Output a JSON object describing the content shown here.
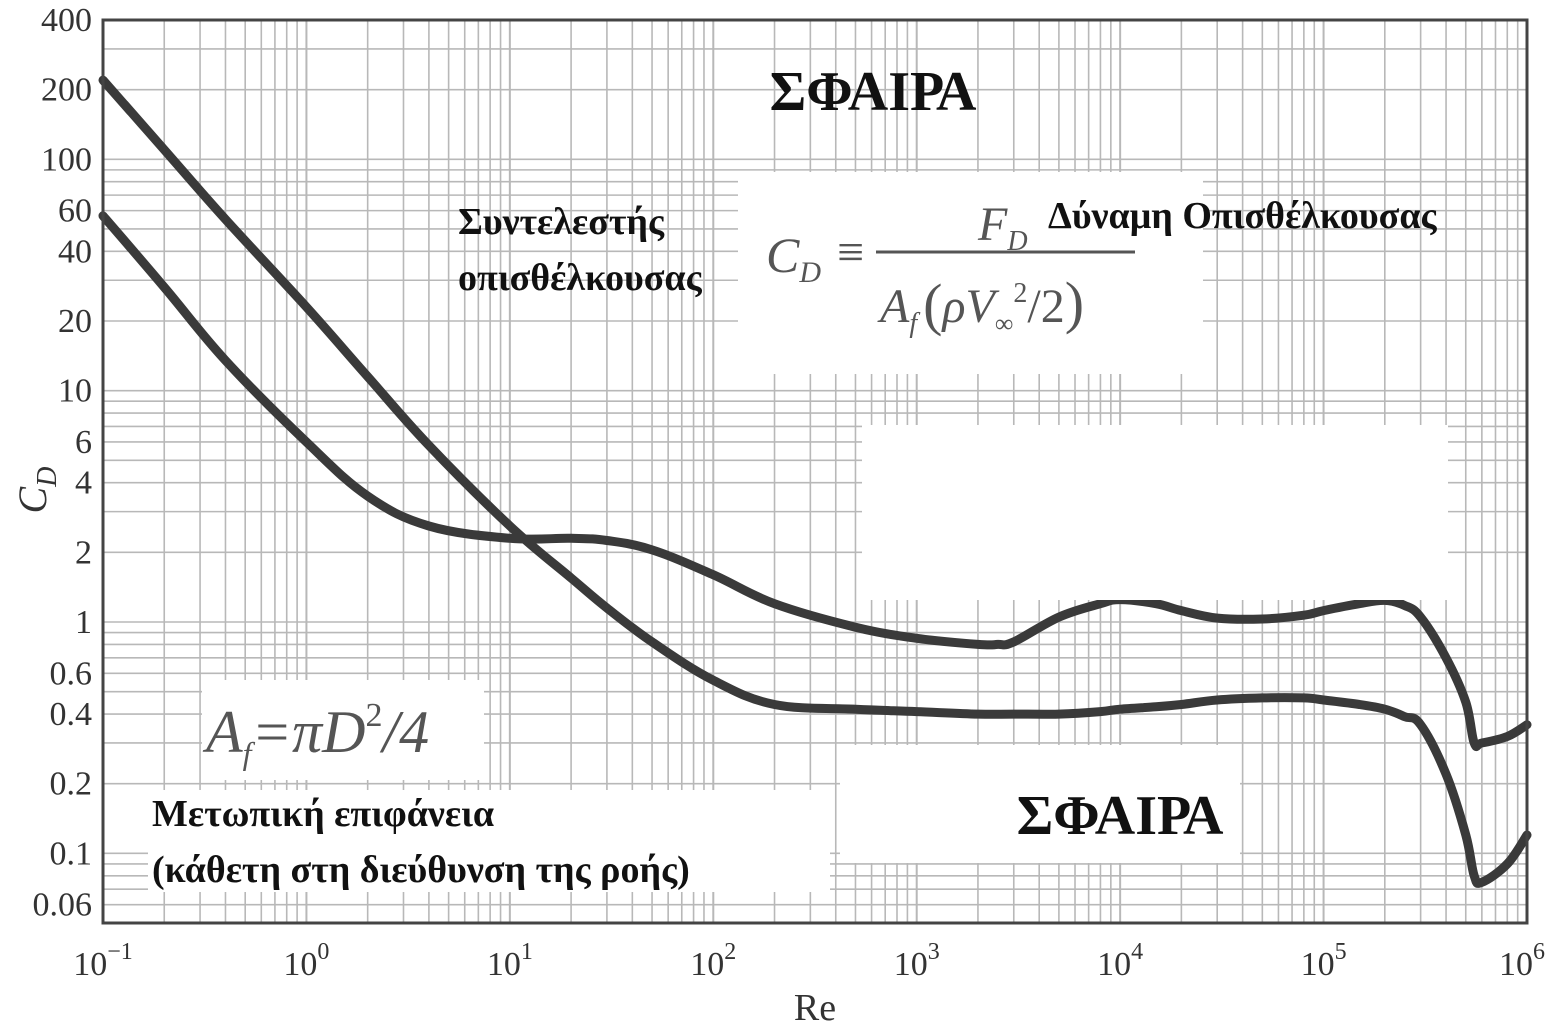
{
  "chart_data": {
    "type": "line",
    "title": "ΣΦΑΙΡΑ",
    "xlabel": "Re",
    "ylabel": "C",
    "ylabel_sub": "D",
    "xscale": "log",
    "yscale": "log",
    "xlim": [
      0.1,
      1000000
    ],
    "ylim": [
      0.05,
      400
    ],
    "grid": true,
    "x_ticks": [
      {
        "value": 0.1,
        "base": "10",
        "exp": "−1"
      },
      {
        "value": 1,
        "base": "10",
        "exp": "0"
      },
      {
        "value": 10,
        "base": "10",
        "exp": "1"
      },
      {
        "value": 100,
        "base": "10",
        "exp": "2"
      },
      {
        "value": 1000,
        "base": "10",
        "exp": "3"
      },
      {
        "value": 10000,
        "base": "10",
        "exp": "4"
      },
      {
        "value": 100000,
        "base": "10",
        "exp": "5"
      },
      {
        "value": 1000000,
        "base": "10",
        "exp": "6"
      }
    ],
    "y_ticks": [
      {
        "value": 400,
        "label": "400"
      },
      {
        "value": 200,
        "label": "200"
      },
      {
        "value": 100,
        "label": "100"
      },
      {
        "value": 60,
        "label": "60"
      },
      {
        "value": 40,
        "label": "40"
      },
      {
        "value": 20,
        "label": "20"
      },
      {
        "value": 10,
        "label": "10"
      },
      {
        "value": 6,
        "label": "6"
      },
      {
        "value": 4,
        "label": "4"
      },
      {
        "value": 2,
        "label": "2"
      },
      {
        "value": 1,
        "label": "1"
      },
      {
        "value": 0.6,
        "label": "0.6"
      },
      {
        "value": 0.4,
        "label": "0.4"
      },
      {
        "value": 0.2,
        "label": "0.2"
      },
      {
        "value": 0.1,
        "label": "0.1"
      },
      {
        "value": 0.06,
        "label": "0.06"
      }
    ],
    "series": [
      {
        "id": "upper-curve",
        "x": [
          0.1,
          0.2,
          0.4,
          1,
          2,
          4,
          10,
          20,
          30,
          50,
          100,
          200,
          500,
          1000,
          2000,
          3000,
          5000,
          8000,
          10000,
          15000,
          20000,
          30000,
          50000,
          80000,
          100000,
          150000,
          200000,
          250000,
          300000,
          400000,
          500000,
          550000,
          600000,
          800000,
          1000000
        ],
        "values": [
          220,
          110,
          55,
          23,
          11.5,
          5.8,
          2.6,
          1.55,
          1.15,
          0.82,
          0.56,
          0.44,
          0.42,
          0.41,
          0.4,
          0.4,
          0.4,
          0.41,
          0.42,
          0.43,
          0.44,
          0.46,
          0.47,
          0.47,
          0.46,
          0.44,
          0.42,
          0.39,
          0.36,
          0.22,
          0.12,
          0.08,
          0.075,
          0.09,
          0.12
        ]
      },
      {
        "id": "lower-curve",
        "x": [
          0.1,
          0.2,
          0.4,
          1,
          2,
          4,
          10,
          20,
          30,
          50,
          100,
          200,
          500,
          1000,
          2000,
          2500,
          3000,
          5000,
          8000,
          10000,
          15000,
          20000,
          30000,
          50000,
          80000,
          100000,
          150000,
          200000,
          250000,
          300000,
          400000,
          500000,
          550000,
          600000,
          800000,
          1000000
        ],
        "values": [
          57,
          28,
          13.5,
          6,
          3.5,
          2.6,
          2.3,
          2.3,
          2.25,
          2.05,
          1.6,
          1.2,
          0.95,
          0.85,
          0.8,
          0.8,
          0.82,
          1.05,
          1.2,
          1.25,
          1.2,
          1.12,
          1.04,
          1.03,
          1.07,
          1.12,
          1.2,
          1.24,
          1.18,
          1.05,
          0.7,
          0.45,
          0.3,
          0.3,
          0.32,
          0.36
        ]
      }
    ],
    "annotations": {
      "title_bottom": "ΣΦΑΙΡΑ",
      "drag_coefficient_line1": "Συντελεστής",
      "drag_coefficient_line2": "οπισθέλκουσας",
      "drag_force": "Δύναμη Οπισθέλκουσας",
      "frontal_area_line1": "Μετωπική επιφάνεια",
      "frontal_area_line2": "(κάθετη στη διεύθυνση της ροής)",
      "formula_cd": "C",
      "formula_cd_sub": "D",
      "formula_equiv": "≡",
      "formula_num": "F",
      "formula_num_sub": "D",
      "formula_den_a": "A",
      "formula_den_a_sub": "f",
      "formula_den_open": "(",
      "formula_den_rho": "ρ",
      "formula_den_v": "V",
      "formula_den_v_sub": "∞",
      "formula_den_v_sup": "2",
      "formula_den_rest": "/2",
      "formula_den_close": ")",
      "area_a": "A",
      "area_sub": "f",
      "area_eq": "=π",
      "area_d": "D",
      "area_sup": "2",
      "area_rest": "/4"
    },
    "colors": {
      "curve": "#3a3a3a",
      "grid": "#b8b8b8",
      "frame": "#444444"
    }
  }
}
